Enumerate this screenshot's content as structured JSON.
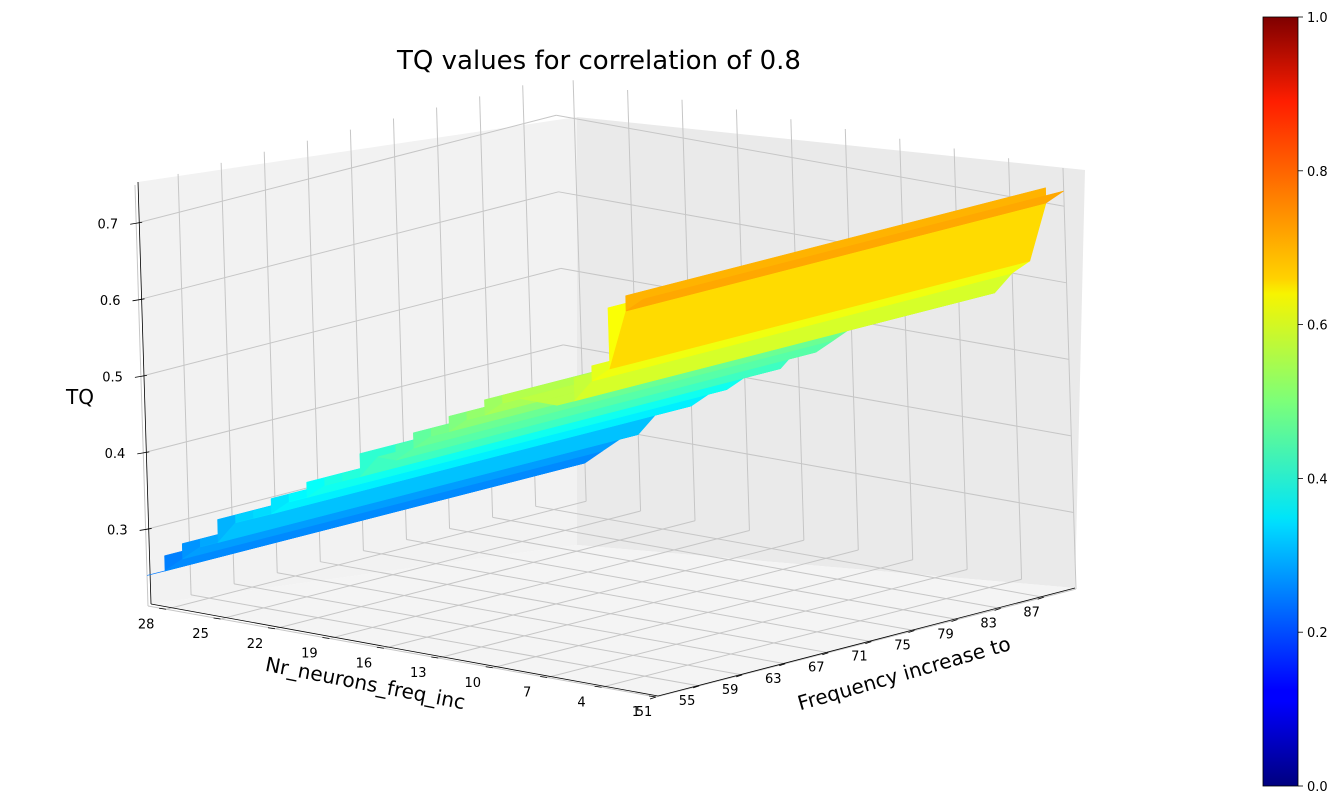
{
  "chart_data": {
    "type": "surface3d",
    "title": "TQ values for correlation of 0.8",
    "xlabel": "Frequency increase to",
    "ylabel": "Nr_neurons_freq_inc",
    "zlabel": "TQ",
    "colormap": "jet",
    "x_ticks": [
      "51",
      "55",
      "59",
      "63",
      "67",
      "71",
      "75",
      "79",
      "83",
      "87"
    ],
    "y_ticks": [
      "28",
      "25",
      "22",
      "19",
      "16",
      "13",
      "10",
      "7",
      "4",
      "1"
    ],
    "z_ticks": [
      "0.3",
      "0.4",
      "0.5",
      "0.6",
      "0.7"
    ],
    "colorbar_ticks": [
      "0.0",
      "0.2",
      "0.4",
      "0.6",
      "0.8",
      "1.0"
    ],
    "colorbar_range": [
      0.0,
      1.0
    ],
    "zlim": [
      0.2,
      0.75
    ],
    "x_range": [
      51,
      90
    ],
    "y_range": [
      1,
      29
    ],
    "y_values": [
      1,
      2,
      3,
      4,
      5,
      6,
      7,
      8,
      9,
      10,
      11,
      12,
      13,
      14,
      15,
      16,
      17,
      18,
      19,
      20,
      21,
      22,
      23,
      24,
      25,
      26,
      27,
      28,
      29
    ],
    "tq_by_neurons": [
      0.72,
      0.7,
      0.62,
      0.6,
      0.57,
      0.56,
      0.56,
      0.56,
      0.55,
      0.53,
      0.52,
      0.5,
      0.49,
      0.47,
      0.45,
      0.45,
      0.42,
      0.41,
      0.4,
      0.38,
      0.37,
      0.35,
      0.34,
      0.33,
      0.3,
      0.29,
      0.27,
      0.25,
      0.24
    ]
  }
}
